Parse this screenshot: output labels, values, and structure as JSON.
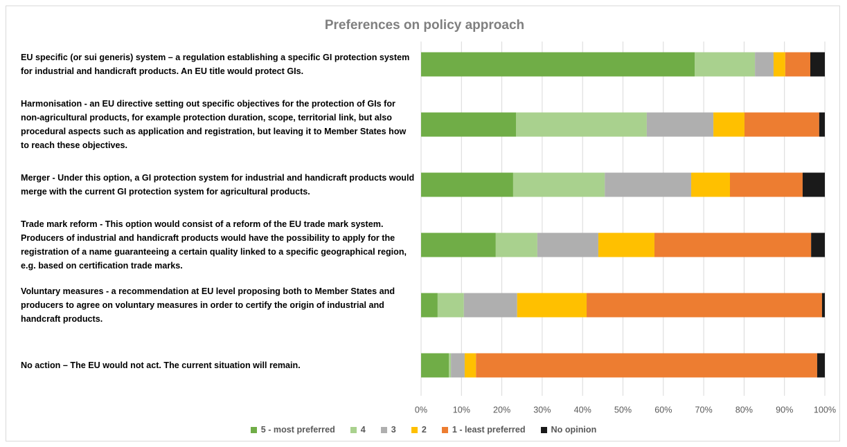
{
  "chart_data": {
    "type": "bar",
    "orientation": "horizontal",
    "stacked": true,
    "title": "Preferences on policy approach",
    "categories": [
      "EU specific (or sui generis) system – a regulation establishing a specific GI protection system for industrial and handicraft products. An EU title would protect GIs.",
      "Harmonisation - an EU directive setting out specific objectives for the protection of GIs for non-agricultural products, for example protection duration, scope, territorial link, but also procedural aspects such as application and registration, but leaving it to Member States how to reach these objectives.",
      "Merger - Under this option, a GI protection system for industrial and handicraft products would merge with the current GI protection system for agricultural products.",
      "Trade mark reform - This option would consist of a reform of the EU trade mark system. Producers of industrial and handicraft products would have the possibility to apply for the registration of a name guaranteeing a certain quality linked to a specific geographical region, e.g. based on certification trade marks.",
      "Voluntary measures - a recommendation at EU level proposing both to Member States and producers to agree on voluntary measures in order to certify the origin of industrial and handcraft products.",
      "No action – The EU would not act. The current situation will remain."
    ],
    "series": [
      {
        "name": "5 - most preferred",
        "color": "#70ad47",
        "values": [
          67.8,
          23.5,
          22.8,
          18.5,
          4.1,
          6.9
        ]
      },
      {
        "name": "4",
        "color": "#a9d18e",
        "values": [
          14.9,
          32.4,
          22.7,
          10.3,
          6.5,
          0.5
        ]
      },
      {
        "name": "3",
        "color": "#afafaf",
        "values": [
          4.6,
          16.5,
          21.4,
          15.1,
          13.2,
          3.4
        ]
      },
      {
        "name": "2",
        "color": "#ffc000",
        "values": [
          2.9,
          7.7,
          9.6,
          13.9,
          17.2,
          2.8
        ]
      },
      {
        "name": "1 - least preferred",
        "color": "#ed7d31",
        "values": [
          6.2,
          18.5,
          18.0,
          38.8,
          58.3,
          84.5
        ]
      },
      {
        "name": "No opinion",
        "color": "#1a1a1a",
        "values": [
          3.6,
          1.4,
          5.5,
          3.4,
          0.7,
          1.9
        ]
      }
    ],
    "xlim": [
      0,
      100
    ],
    "xticks": [
      {
        "value": 0,
        "label": "0%"
      },
      {
        "value": 10,
        "label": "10%"
      },
      {
        "value": 20,
        "label": "20%"
      },
      {
        "value": 30,
        "label": "30%"
      },
      {
        "value": 40,
        "label": "40%"
      },
      {
        "value": 50,
        "label": "50%"
      },
      {
        "value": 60,
        "label": "60%"
      },
      {
        "value": 70,
        "label": "70%"
      },
      {
        "value": 80,
        "label": "80%"
      },
      {
        "value": 90,
        "label": "90%"
      },
      {
        "value": 100,
        "label": "100%"
      }
    ],
    "grid": true,
    "legend": "bottom"
  }
}
